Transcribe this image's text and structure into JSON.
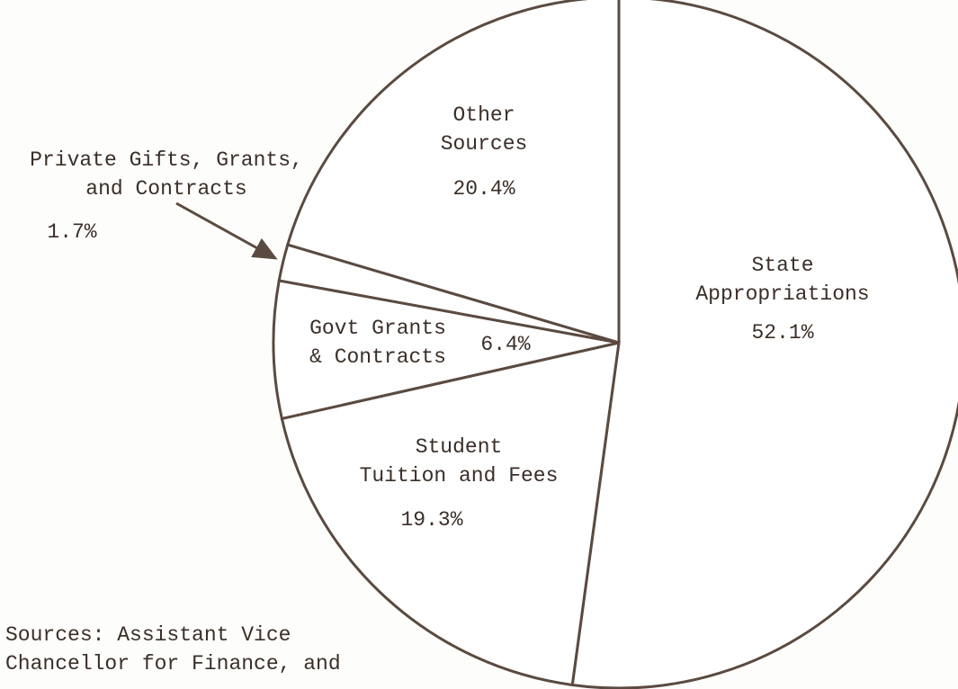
{
  "chart_data": {
    "type": "pie",
    "categories": [
      "State\nAppropriations",
      "Student\nTuition and Fees",
      "Govt Grants\n& Contracts",
      "Private Gifts, Grants,\nand Contracts",
      "Other\nSources"
    ],
    "values": [
      52.1,
      19.3,
      6.4,
      1.7,
      20.4
    ],
    "value_labels": [
      "52.1%",
      "19.3%",
      "6.4%",
      "1.7%",
      "20.4%"
    ],
    "color": "#ffffff",
    "note": "Sources:  Assistant Vice\nChancellor for Finance, and"
  }
}
